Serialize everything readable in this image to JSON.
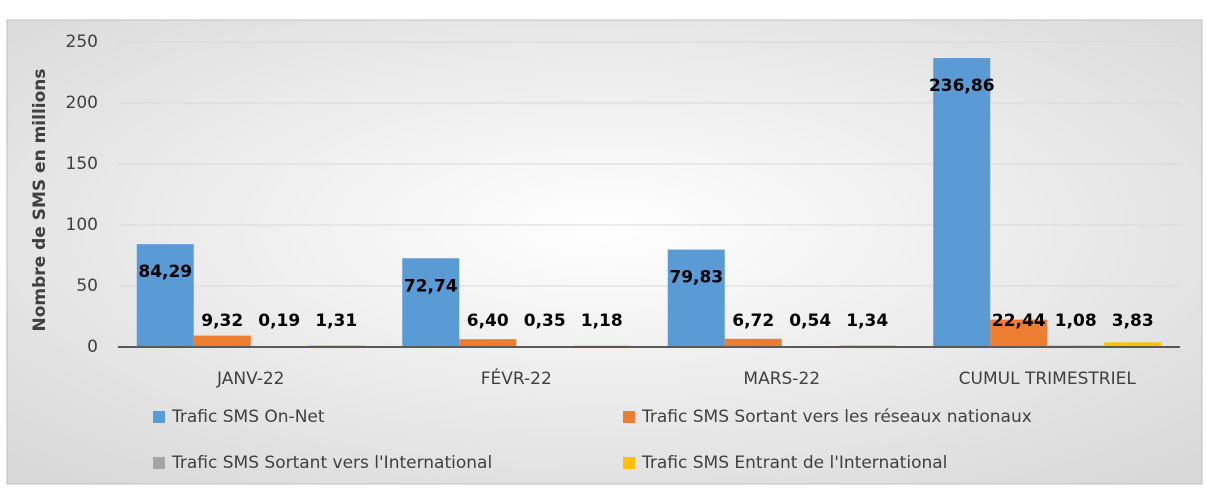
{
  "chart_data": {
    "type": "bar",
    "ylabel": "Nombre de SMS en millions",
    "categories": [
      "JANV-22",
      "FÉVR-22",
      "MARS-22",
      "CUMUL TRIMESTRIEL"
    ],
    "series": [
      {
        "name": "Trafic SMS On-Net",
        "color": "#5b9bd5",
        "values": [
          84.29,
          72.74,
          79.83,
          236.86
        ],
        "value_labels": [
          "84,29",
          "72,74",
          "79,83",
          "236,86"
        ]
      },
      {
        "name": "Trafic SMS Sortant vers les réseaux nationaux",
        "color": "#ed7d31",
        "values": [
          9.32,
          6.4,
          6.72,
          22.44
        ],
        "value_labels": [
          "9,32",
          "6,40",
          "6,72",
          "22,44"
        ]
      },
      {
        "name": "Trafic SMS Sortant vers l'International",
        "color": "#a5a5a5",
        "values": [
          0.19,
          0.35,
          0.54,
          1.08
        ],
        "value_labels": [
          "0,19",
          "0,35",
          "0,54",
          "1,08"
        ]
      },
      {
        "name": "Trafic SMS Entrant de l'International",
        "color": "#ffc000",
        "values": [
          1.31,
          1.18,
          1.34,
          3.83
        ],
        "value_labels": [
          "1,31",
          "1,18",
          "1,34",
          "3,83"
        ]
      }
    ],
    "ylim": [
      0,
      250
    ],
    "yticks": [
      0,
      50,
      100,
      150,
      200,
      250
    ],
    "grid": true
  }
}
